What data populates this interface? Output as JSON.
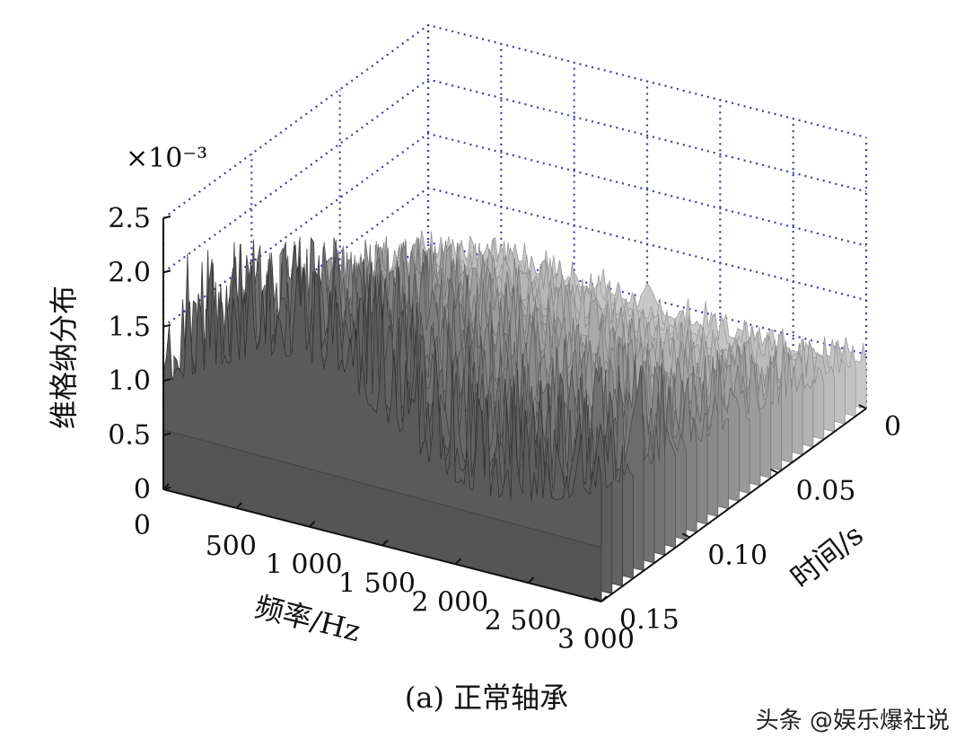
{
  "chart_data": {
    "type": "surface3d",
    "zlabel": "维格纳分布",
    "xlabel": "频率/Hz",
    "ylabel": "时间/s",
    "z_multiplier": "×10⁻³",
    "z_ticks": [
      "0",
      "0.5",
      "1.0",
      "1.5",
      "2.0",
      "2.5"
    ],
    "z_tick_values": [
      0,
      0.5,
      1.0,
      1.5,
      2.0,
      2.5
    ],
    "x_ticks": [
      "0",
      "500",
      "1 000",
      "1 500",
      "2 000",
      "2 500",
      "3 000"
    ],
    "x_tick_values": [
      0,
      500,
      1000,
      1500,
      2000,
      2500,
      3000
    ],
    "y_ticks": [
      "0",
      "0.05",
      "0.10",
      "0.15"
    ],
    "y_tick_values": [
      0,
      0.05,
      0.1,
      0.15
    ],
    "xlim": [
      0,
      3000
    ],
    "ylim": [
      0,
      0.15
    ],
    "zlim": [
      0,
      2.5
    ],
    "grid": true,
    "colormap": "gray",
    "surface_profile": {
      "base_level": 0.4,
      "peak_value": 2.2,
      "peak_frequency": 950,
      "peak_time": 0.15,
      "secondary_peaks": [
        {
          "x": 1150,
          "y": 0.15,
          "z": 1.9
        },
        {
          "x": 2700,
          "y": 0.05,
          "z": 1.2
        }
      ]
    }
  },
  "caption": "(a)  正常轴承",
  "watermark": "头条 @娱乐爆社说"
}
